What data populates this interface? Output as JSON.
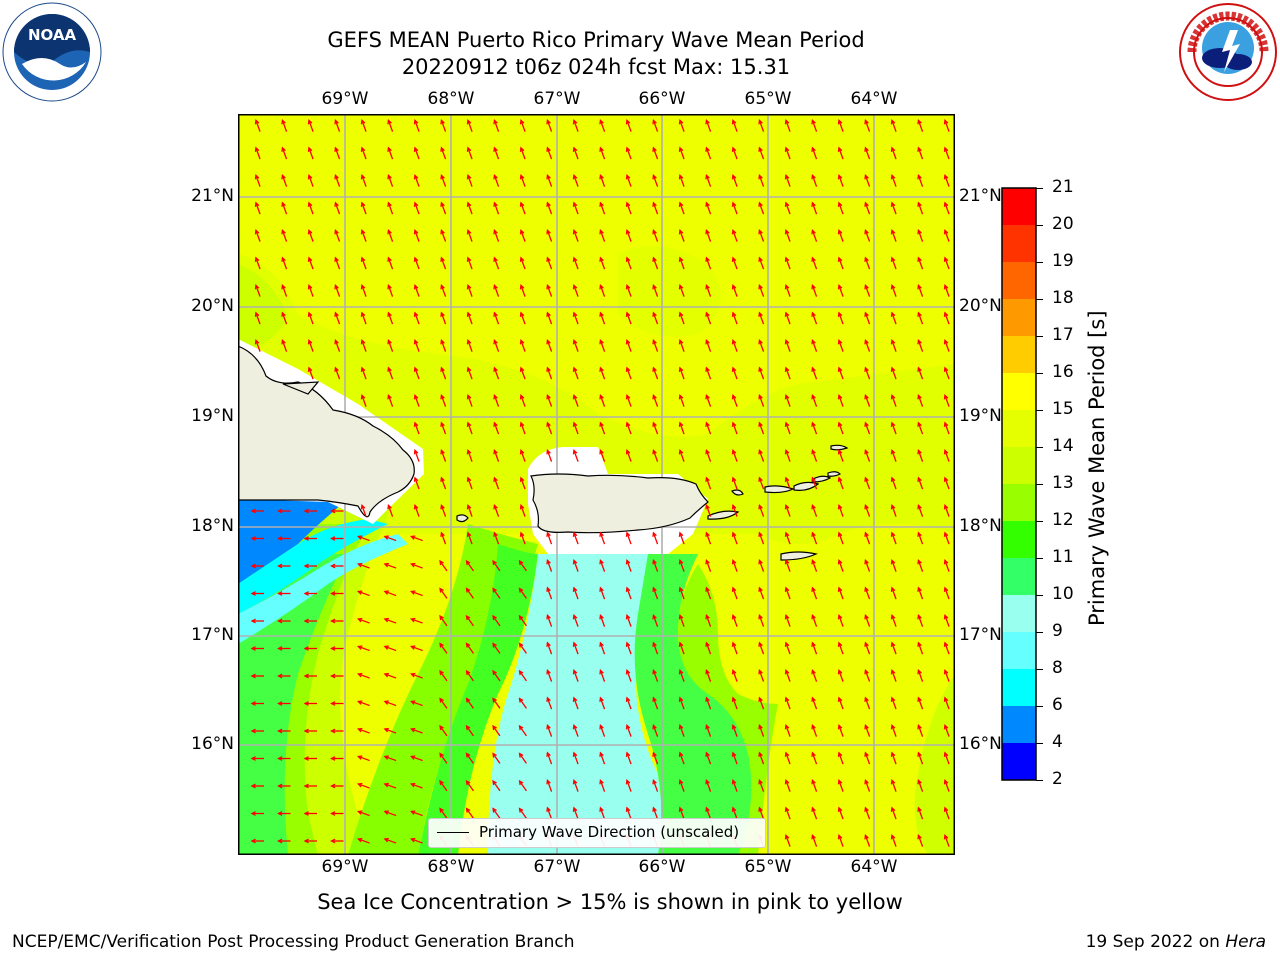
{
  "header": {
    "title": "GEFS MEAN Puerto Rico Primary Wave Mean Period",
    "subtitle": "20220912 t06z 024h fcst   Max: 15.31"
  },
  "logos": {
    "noaa_text": "NOAA",
    "noaa_ring": "NATIONAL OCEANIC AND ATMOSPHERIC ADMINISTRATION · U.S. DEPARTMENT OF COMMERCE",
    "nws_text": "NATIONAL WEATHER SERVICE"
  },
  "map": {
    "lon_labels": [
      "69°W",
      "68°W",
      "67°W",
      "66°W",
      "65°W",
      "64°W"
    ],
    "lat_labels": [
      "21°N",
      "20°N",
      "19°N",
      "18°N",
      "17°N",
      "16°N"
    ],
    "legend_label": "Primary Wave Direction (unscaled)",
    "colors": {
      "land": "#efefe0",
      "arrow": "#ff0000",
      "grid": "#b0b0b0"
    }
  },
  "colorbar": {
    "title": "Primary Wave Mean Period [s]",
    "ticks": [
      "21",
      "20",
      "19",
      "18",
      "17",
      "16",
      "15",
      "14",
      "13",
      "12",
      "11",
      "10",
      "9",
      "8",
      "6",
      "4",
      "2"
    ],
    "colors": [
      "#ff0000",
      "#ff3300",
      "#ff6600",
      "#ff9900",
      "#ffcc00",
      "#ffff00",
      "#e6ff00",
      "#ccff00",
      "#99ff00",
      "#33ff00",
      "#33ff66",
      "#99ffee",
      "#66ffff",
      "#00ffff",
      "#0088ff",
      "#0000ff"
    ]
  },
  "notes": {
    "sea_ice": "Sea Ice Concentration > 15% is shown in pink to yellow",
    "footer_left": "NCEP/EMC/Verification Post Processing Product Generation Branch",
    "footer_right_prefix": "19 Sep 2022 on ",
    "footer_right_host": "Hera"
  }
}
